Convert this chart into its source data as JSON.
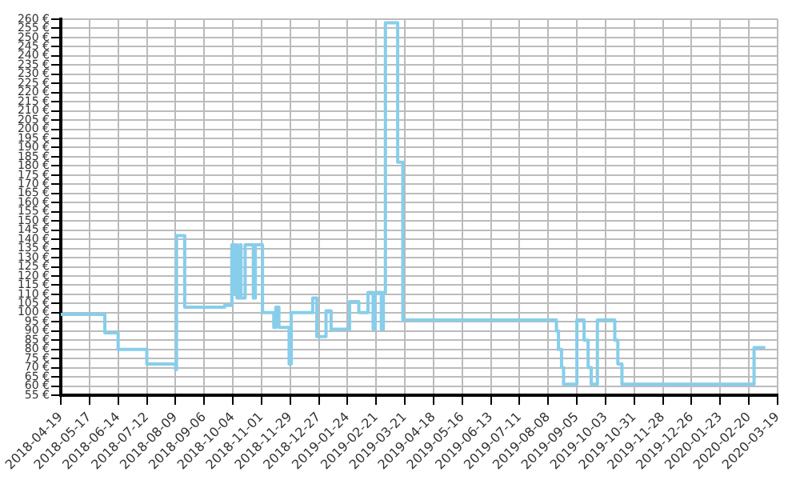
{
  "chart_data": {
    "type": "step",
    "color": "#87ceeb",
    "grid": true,
    "legend": false,
    "marker": "none",
    "x": [
      "2018-04-19",
      "2018-06-01",
      "2018-06-14",
      "2018-07-12",
      "2018-08-09",
      "2018-08-10",
      "2018-08-18",
      "2018-09-26",
      "2018-10-03",
      "2018-10-05",
      "2018-10-07",
      "2018-10-08",
      "2018-10-11",
      "2018-10-12",
      "2018-10-16",
      "2018-10-24",
      "2018-10-26",
      "2018-11-02",
      "2018-11-13",
      "2018-11-15",
      "2018-11-18",
      "2018-11-28",
      "2018-11-30",
      "2018-12-21",
      "2018-12-25",
      "2019-01-03",
      "2019-01-08",
      "2019-01-26",
      "2019-02-04",
      "2019-02-13",
      "2019-02-18",
      "2019-02-20",
      "2019-02-26",
      "2019-02-28",
      "2019-03-02",
      "2019-03-14",
      "2019-03-19",
      "2019-08-16",
      "2019-08-18",
      "2019-08-21",
      "2019-08-23",
      "2019-09-05",
      "2019-09-12",
      "2019-09-16",
      "2019-09-19",
      "2019-09-25",
      "2019-10-12",
      "2019-10-15",
      "2019-10-19",
      "2020-02-25",
      "2020-03-07"
    ],
    "values": [
      99,
      89,
      80,
      72,
      69,
      142,
      103,
      104,
      137,
      110,
      137,
      108,
      137,
      108,
      137,
      108,
      137,
      100,
      92,
      103,
      92,
      72,
      100,
      108,
      87,
      101,
      91,
      106,
      100,
      111,
      91,
      111,
      91,
      111,
      258,
      182,
      96,
      90,
      80,
      70,
      61,
      96,
      85,
      70,
      61,
      96,
      85,
      72,
      61,
      81,
      81
    ],
    "xlim": [
      "2018-04-19",
      "2020-03-19"
    ],
    "xticks": [
      "2018-04-19",
      "2018-05-17",
      "2018-06-14",
      "2018-07-12",
      "2018-08-09",
      "2018-09-06",
      "2018-10-04",
      "2018-11-01",
      "2018-11-29",
      "2018-12-27",
      "2019-01-24",
      "2019-02-21",
      "2019-03-21",
      "2019-04-18",
      "2019-05-16",
      "2019-06-13",
      "2019-07-11",
      "2019-08-08",
      "2019-09-05",
      "2019-10-03",
      "2019-10-31",
      "2019-11-28",
      "2019-12-26",
      "2020-01-23",
      "2020-02-20",
      "2020-03-19"
    ],
    "ylim": [
      55,
      260
    ],
    "yticks": [
      {
        "value": 55,
        "label": "55 €"
      },
      {
        "value": 60,
        "label": "60 €"
      },
      {
        "value": 65,
        "label": "65 €"
      },
      {
        "value": 70,
        "label": "70 €"
      },
      {
        "value": 75,
        "label": "75 €"
      },
      {
        "value": 80,
        "label": "80 €"
      },
      {
        "value": 85,
        "label": "85 €"
      },
      {
        "value": 90,
        "label": "90 €"
      },
      {
        "value": 95,
        "label": "95 €"
      },
      {
        "value": 100,
        "label": "100 €"
      },
      {
        "value": 105,
        "label": "105 €"
      },
      {
        "value": 110,
        "label": "110 €"
      },
      {
        "value": 115,
        "label": "115 €"
      },
      {
        "value": 120,
        "label": "120 €"
      },
      {
        "value": 125,
        "label": "125 €"
      },
      {
        "value": 130,
        "label": "130 €"
      },
      {
        "value": 135,
        "label": "135 €"
      },
      {
        "value": 140,
        "label": "140 €"
      },
      {
        "value": 145,
        "label": "145 €"
      },
      {
        "value": 150,
        "label": "150 €"
      },
      {
        "value": 155,
        "label": "155 €"
      },
      {
        "value": 160,
        "label": "160 €"
      },
      {
        "value": 165,
        "label": "165 €"
      },
      {
        "value": 170,
        "label": "170 €"
      },
      {
        "value": 175,
        "label": "175 €"
      },
      {
        "value": 180,
        "label": "180 €"
      },
      {
        "value": 185,
        "label": "185 €"
      },
      {
        "value": 190,
        "label": "190 €"
      },
      {
        "value": 195,
        "label": "195 €"
      },
      {
        "value": 200,
        "label": "200 €"
      },
      {
        "value": 205,
        "label": "205 €"
      },
      {
        "value": 210,
        "label": "210 €"
      },
      {
        "value": 215,
        "label": "215 €"
      },
      {
        "value": 220,
        "label": "220 €"
      },
      {
        "value": 225,
        "label": "225 €"
      },
      {
        "value": 230,
        "label": "230 €"
      },
      {
        "value": 235,
        "label": "235 €"
      },
      {
        "value": 240,
        "label": "240 €"
      },
      {
        "value": 245,
        "label": "245 €"
      },
      {
        "value": 250,
        "label": "250 €"
      },
      {
        "value": 255,
        "label": "255 €"
      },
      {
        "value": 260,
        "label": "260 €"
      }
    ]
  }
}
